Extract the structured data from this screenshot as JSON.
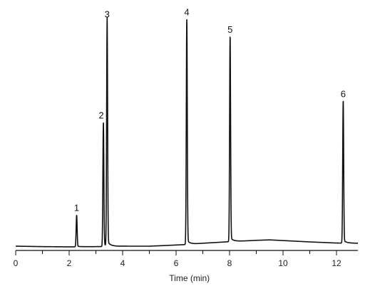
{
  "chart_data": {
    "type": "line",
    "title": "",
    "xlabel": "Time (min)",
    "ylabel": "",
    "xlim": [
      0,
      12.8
    ],
    "ylim": [
      0,
      100
    ],
    "x_ticks": [
      0,
      2,
      4,
      6,
      8,
      10,
      12
    ],
    "grid": false,
    "legend": "none",
    "line_color": "#111111",
    "peaks": [
      {
        "label": "1",
        "time": 2.28,
        "height": 14
      },
      {
        "label": "2",
        "time": 3.28,
        "height": 55
      },
      {
        "label": "3",
        "time": 3.42,
        "height": 100
      },
      {
        "label": "4",
        "time": 6.4,
        "height": 100
      },
      {
        "label": "5",
        "time": 8.02,
        "height": 91
      },
      {
        "label": "6",
        "time": 12.25,
        "height": 63
      }
    ],
    "baseline": [
      [
        0,
        0
      ],
      [
        1,
        -0.2
      ],
      [
        2,
        -0.3
      ],
      [
        3,
        -0.2
      ],
      [
        4,
        0
      ],
      [
        5,
        0
      ],
      [
        5.6,
        0.3
      ],
      [
        6.5,
        0.8
      ],
      [
        7,
        1.3
      ],
      [
        8,
        2
      ],
      [
        9,
        2.6
      ],
      [
        9.5,
        2.8
      ],
      [
        10,
        2.5
      ],
      [
        11,
        1.9
      ],
      [
        12,
        1.4
      ],
      [
        12.8,
        1.3
      ]
    ]
  }
}
